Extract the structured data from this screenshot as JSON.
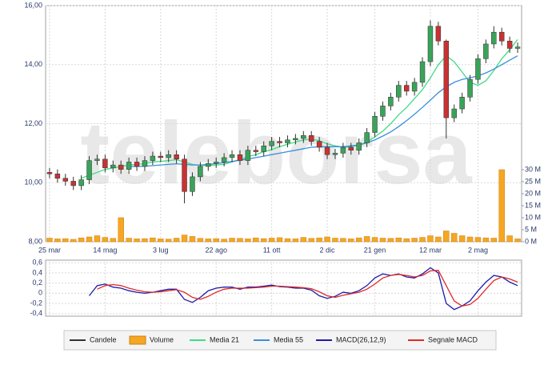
{
  "chart_data": {
    "type": "candlestick",
    "watermark": "teleborsa",
    "candle_name": "Candele",
    "categories": [
      "25 mar",
      null,
      null,
      null,
      null,
      null,
      null,
      "14 mag",
      null,
      null,
      null,
      null,
      null,
      null,
      "3 lug",
      null,
      null,
      null,
      null,
      null,
      null,
      "22 ago",
      null,
      null,
      null,
      null,
      null,
      null,
      "11 ott",
      null,
      null,
      null,
      null,
      null,
      null,
      "2 dic",
      null,
      null,
      null,
      null,
      null,
      "21 gen",
      null,
      null,
      null,
      null,
      null,
      null,
      "12 mar",
      null,
      null,
      null,
      null,
      null,
      "2 mag",
      null,
      null,
      null,
      null,
      null
    ],
    "open": [
      10.35,
      10.3,
      10.15,
      10.05,
      9.9,
      10.1,
      10.75,
      10.8,
      10.5,
      10.6,
      10.45,
      10.7,
      10.55,
      10.75,
      10.9,
      10.85,
      10.95,
      10.8,
      9.7,
      10.2,
      10.55,
      10.65,
      10.7,
      10.85,
      10.95,
      10.75,
      11.1,
      11.05,
      11.25,
      11.4,
      11.35,
      11.45,
      11.5,
      11.6,
      11.4,
      11.2,
      10.95,
      11.0,
      11.2,
      11.1,
      11.35,
      11.7,
      12.25,
      12.6,
      12.9,
      13.3,
      13.1,
      13.4,
      14.1,
      15.3,
      14.8,
      12.2,
      12.5,
      12.9,
      13.5,
      14.2,
      14.7,
      15.1,
      14.8,
      14.55
    ],
    "high": [
      10.5,
      10.45,
      10.3,
      10.2,
      10.25,
      10.9,
      10.95,
      10.95,
      10.75,
      10.75,
      10.85,
      10.85,
      10.9,
      11.05,
      11.05,
      11.1,
      11.1,
      10.95,
      10.35,
      10.7,
      10.8,
      10.85,
      11.0,
      11.1,
      11.1,
      11.25,
      11.25,
      11.4,
      11.55,
      11.55,
      11.6,
      11.65,
      11.75,
      11.75,
      11.55,
      11.35,
      11.15,
      11.35,
      11.35,
      11.5,
      11.85,
      12.4,
      12.75,
      13.05,
      13.45,
      13.45,
      13.55,
      14.25,
      15.5,
      15.45,
      14.85,
      12.65,
      13.05,
      13.65,
      14.35,
      14.85,
      15.3,
      15.25,
      14.95,
      14.75
    ],
    "low": [
      10.15,
      10.0,
      9.9,
      9.75,
      9.75,
      9.95,
      10.6,
      10.35,
      10.35,
      10.3,
      10.3,
      10.4,
      10.4,
      10.6,
      10.7,
      10.7,
      10.65,
      9.3,
      9.55,
      10.05,
      10.4,
      10.5,
      10.55,
      10.7,
      10.6,
      10.6,
      10.9,
      10.9,
      11.1,
      11.2,
      11.2,
      11.3,
      11.35,
      11.25,
      11.05,
      10.8,
      10.8,
      10.85,
      10.95,
      10.95,
      11.2,
      11.55,
      12.1,
      12.45,
      12.75,
      12.95,
      12.95,
      13.25,
      13.95,
      14.65,
      11.5,
      12.05,
      12.35,
      12.75,
      13.35,
      14.05,
      14.55,
      14.65,
      14.4,
      14.4
    ],
    "close": [
      10.3,
      10.15,
      10.05,
      9.9,
      10.1,
      10.75,
      10.8,
      10.5,
      10.6,
      10.45,
      10.7,
      10.55,
      10.75,
      10.9,
      10.85,
      10.95,
      10.8,
      9.7,
      10.2,
      10.55,
      10.65,
      10.7,
      10.85,
      10.95,
      10.75,
      11.1,
      11.05,
      11.25,
      11.4,
      11.35,
      11.45,
      11.5,
      11.6,
      11.4,
      11.2,
      10.95,
      11.0,
      11.2,
      11.1,
      11.35,
      11.7,
      12.25,
      12.6,
      12.9,
      13.3,
      13.1,
      13.4,
      14.1,
      15.3,
      14.8,
      12.2,
      12.5,
      12.9,
      13.5,
      14.2,
      14.7,
      15.1,
      14.8,
      14.55,
      14.6
    ],
    "up_color": "#3aa35a",
    "down_color": "#c83232",
    "wick_color": "#333333",
    "ylim": [
      8,
      16
    ],
    "yticks": [
      {
        "value": 8,
        "label": "8,00"
      },
      {
        "value": 10,
        "label": "10,00"
      },
      {
        "value": 12,
        "label": "12,00"
      },
      {
        "value": 14,
        "label": "14,00"
      },
      {
        "value": 16,
        "label": "16,00"
      }
    ],
    "grid": true,
    "lines": [
      {
        "name": "Media 21",
        "color": "#3ddc84",
        "values": [
          null,
          null,
          null,
          null,
          10.15,
          10.25,
          10.35,
          10.45,
          10.5,
          10.55,
          10.6,
          10.62,
          10.65,
          10.7,
          10.72,
          10.75,
          10.78,
          10.7,
          10.62,
          10.58,
          10.58,
          10.6,
          10.62,
          10.7,
          10.78,
          10.88,
          10.95,
          11.05,
          11.12,
          11.22,
          11.3,
          11.38,
          11.45,
          11.48,
          11.42,
          11.32,
          11.25,
          11.2,
          11.22,
          11.28,
          11.38,
          11.55,
          11.75,
          12.0,
          12.3,
          12.55,
          12.85,
          13.15,
          13.55,
          14.0,
          14.3,
          14.1,
          13.75,
          13.4,
          13.3,
          13.45,
          13.8,
          14.2,
          14.5,
          14.85
        ]
      },
      {
        "name": "Media 55",
        "color": "#3a8ede",
        "values": [
          null,
          null,
          null,
          null,
          null,
          null,
          null,
          null,
          null,
          null,
          10.55,
          10.55,
          10.56,
          10.58,
          10.6,
          10.62,
          10.64,
          10.62,
          10.6,
          10.6,
          10.62,
          10.65,
          10.68,
          10.72,
          10.76,
          10.8,
          10.85,
          10.9,
          10.95,
          11.0,
          11.05,
          11.1,
          11.15,
          11.2,
          11.22,
          11.22,
          11.22,
          11.22,
          11.25,
          11.28,
          11.35,
          11.45,
          11.58,
          11.72,
          11.9,
          12.1,
          12.32,
          12.55,
          12.8,
          13.05,
          13.25,
          13.4,
          13.5,
          13.55,
          13.62,
          13.72,
          13.85,
          14.0,
          14.15,
          14.3
        ]
      }
    ],
    "volume": {
      "name": "Volume",
      "color": "#f5a623",
      "values": [
        1.5,
        1.2,
        1.3,
        1.0,
        1.6,
        2.0,
        2.5,
        1.8,
        1.4,
        10.0,
        1.5,
        1.2,
        1.3,
        1.6,
        1.2,
        1.1,
        1.5,
        2.8,
        2.2,
        1.4,
        1.2,
        1.3,
        1.1,
        1.5,
        1.4,
        1.2,
        1.6,
        1.3,
        1.5,
        1.7,
        1.3,
        1.2,
        1.8,
        1.4,
        1.6,
        2.0,
        1.5,
        1.4,
        1.2,
        1.6,
        2.2,
        1.8,
        1.5,
        1.4,
        1.6,
        1.3,
        1.5,
        1.8,
        2.5,
        2.0,
        4.5,
        3.5,
        2.5,
        2.0,
        1.8,
        1.6,
        1.5,
        30.0,
        2.5,
        1.2
      ],
      "y2lim": [
        0,
        98.3
      ],
      "y2ticks": [
        {
          "value": 0,
          "label": "0 M"
        },
        {
          "value": 5,
          "label": "5 M"
        },
        {
          "value": 10,
          "label": "10 M"
        },
        {
          "value": 15,
          "label": "15 M"
        },
        {
          "value": 20,
          "label": "20 M"
        },
        {
          "value": 25,
          "label": "25 M"
        },
        {
          "value": 30,
          "label": "30 M"
        }
      ]
    },
    "macd": {
      "ylim": [
        -0.45,
        0.65
      ],
      "yticks": [
        {
          "value": -0.4,
          "label": "-0,4"
        },
        {
          "value": -0.2,
          "label": "-0,2"
        },
        {
          "value": 0,
          "label": "0"
        },
        {
          "value": 0.2,
          "label": "0,2"
        },
        {
          "value": 0.4,
          "label": "0,4"
        },
        {
          "value": 0.6,
          "label": "0,6"
        }
      ],
      "series": [
        {
          "name": "MACD(26,12,9)",
          "color": "#1c1ca8",
          "values": [
            null,
            null,
            null,
            null,
            null,
            -0.05,
            0.15,
            0.18,
            0.12,
            0.1,
            0.05,
            0.02,
            0.0,
            0.02,
            0.05,
            0.08,
            0.08,
            -0.12,
            -0.18,
            -0.08,
            0.05,
            0.1,
            0.12,
            0.12,
            0.08,
            0.12,
            0.12,
            0.14,
            0.16,
            0.13,
            0.12,
            0.1,
            0.1,
            0.06,
            -0.05,
            -0.1,
            -0.06,
            0.02,
            0.0,
            0.05,
            0.15,
            0.3,
            0.38,
            0.35,
            0.38,
            0.32,
            0.3,
            0.38,
            0.5,
            0.4,
            -0.2,
            -0.32,
            -0.25,
            -0.15,
            0.05,
            0.22,
            0.35,
            0.32,
            0.22,
            0.15
          ]
        },
        {
          "name": "Segnale MACD",
          "color": "#e02828",
          "values": [
            null,
            null,
            null,
            null,
            null,
            null,
            0.08,
            0.15,
            0.17,
            0.15,
            0.1,
            0.06,
            0.03,
            0.02,
            0.03,
            0.05,
            0.07,
            0.02,
            -0.08,
            -0.12,
            -0.06,
            0.02,
            0.08,
            0.1,
            0.1,
            0.1,
            0.11,
            0.12,
            0.14,
            0.14,
            0.13,
            0.12,
            0.11,
            0.09,
            0.03,
            -0.05,
            -0.08,
            -0.04,
            -0.01,
            0.02,
            0.08,
            0.18,
            0.3,
            0.35,
            0.37,
            0.35,
            0.32,
            0.35,
            0.44,
            0.45,
            0.15,
            -0.15,
            -0.25,
            -0.22,
            -0.1,
            0.08,
            0.25,
            0.32,
            0.28,
            0.22
          ]
        }
      ]
    }
  }
}
